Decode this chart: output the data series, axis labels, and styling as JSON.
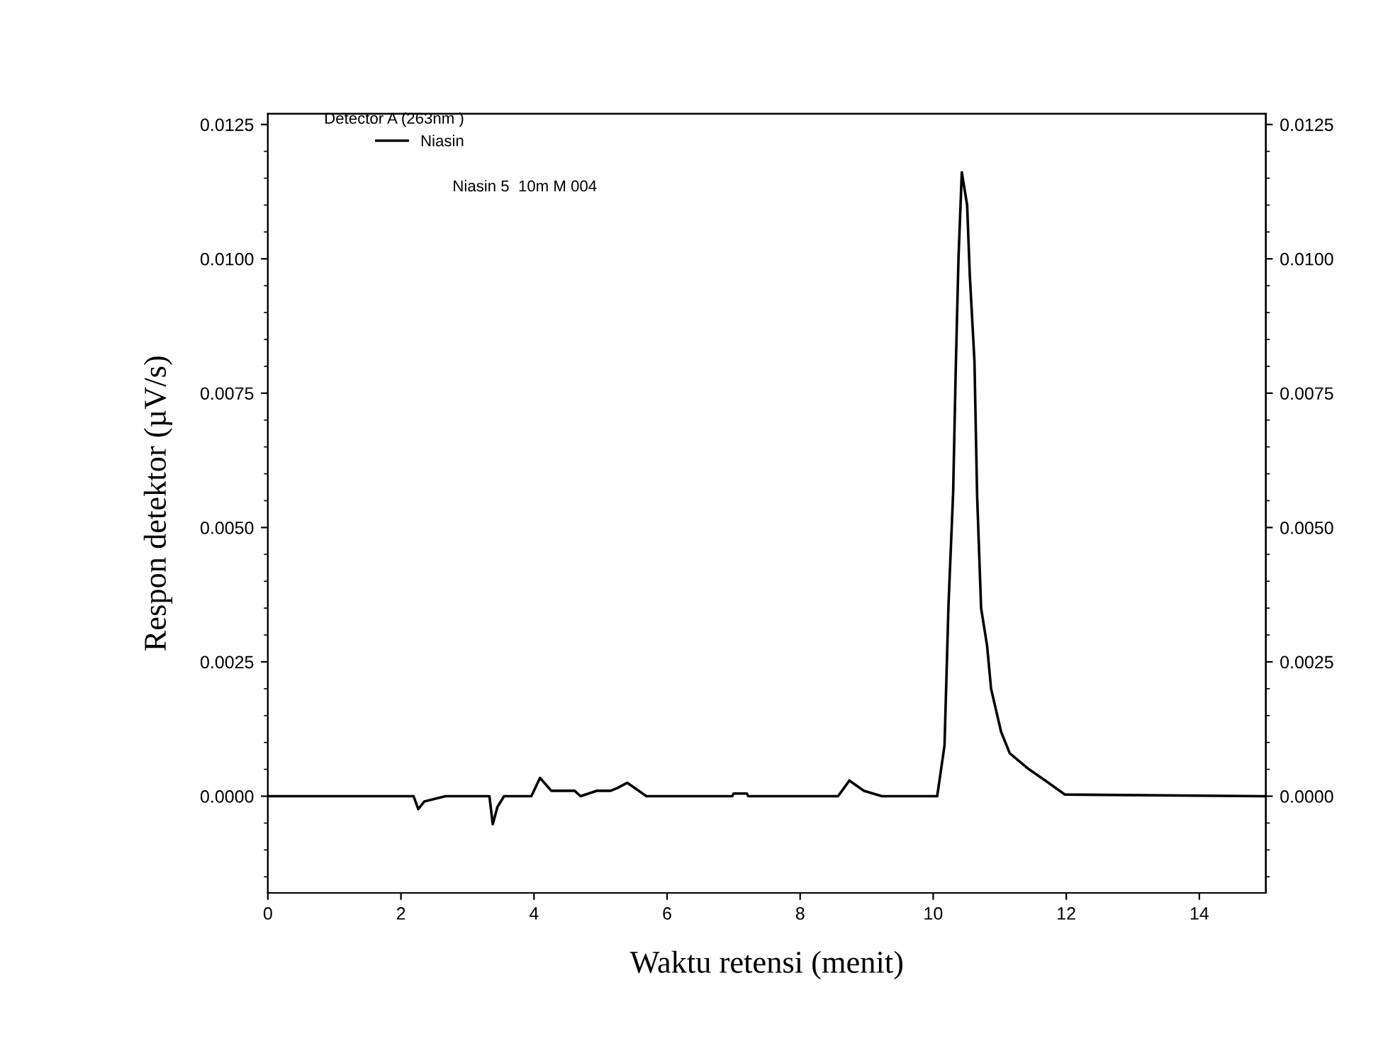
{
  "chart_data": {
    "type": "line",
    "xlabel": "Waktu retensi (menit)",
    "ylabel": "Respon detektor (µV/s)",
    "legend_title": "Detector A (263nm )",
    "legend": "top left",
    "grid": false,
    "annotations": [
      "Niasin 5  10m M 004"
    ],
    "xlim": [
      0,
      15
    ],
    "xticks": [
      0,
      2,
      4,
      6,
      8,
      10,
      12,
      14
    ],
    "ylim": [
      -0.0018,
      0.0127
    ],
    "yticks": [
      {
        "value": 0,
        "label": "0.0000"
      },
      {
        "value": 0.0025,
        "label": "0.0025"
      },
      {
        "value": 0.005,
        "label": "0.0050"
      },
      {
        "value": 0.0075,
        "label": "0.0075"
      },
      {
        "value": 0.01,
        "label": "0.0100"
      },
      {
        "value": 0.0125,
        "label": "0.0125"
      }
    ],
    "y2lim": [
      -0.0018,
      0.0127
    ],
    "y2ticks": [
      {
        "value": 0,
        "label": "0.0000"
      },
      {
        "value": 0.0025,
        "label": "0.0025"
      },
      {
        "value": 0.005,
        "label": "0.0050"
      },
      {
        "value": 0.0075,
        "label": "0.0075"
      },
      {
        "value": 0.01,
        "label": "0.0100"
      },
      {
        "value": 0.0125,
        "label": "0.0125"
      }
    ],
    "series": [
      {
        "name": "Niasin",
        "color": "#000000",
        "x": [
          0,
          2.19,
          2.26,
          2.35,
          2.67,
          3.33,
          3.38,
          3.45,
          3.55,
          3.96,
          4.09,
          4.26,
          4.61,
          4.7,
          4.94,
          5.15,
          5.25,
          5.4,
          5.69,
          6.98,
          7.0,
          7.2,
          7.22,
          8.57,
          8.74,
          8.96,
          9.23,
          10.06,
          10.17,
          10.23,
          10.3,
          10.34,
          10.38,
          10.43,
          10.51,
          10.55,
          10.62,
          10.66,
          10.72,
          10.81,
          10.87,
          11.02,
          11.15,
          11.44,
          11.72,
          11.98,
          15
        ],
        "values": [
          0,
          0,
          -0.00024,
          -0.0001,
          0,
          0,
          -0.00052,
          -0.0002,
          0,
          0,
          0.00034,
          0.0001,
          0.0001,
          0,
          0.0001,
          0.0001,
          0.00015,
          0.00025,
          0,
          0,
          5e-05,
          5e-05,
          0,
          0,
          0.00029,
          0.0001,
          0,
          0,
          0.00094,
          0.00356,
          0.00566,
          0.008,
          0.01,
          0.01161,
          0.011,
          0.0097,
          0.0081,
          0.0056,
          0.0035,
          0.0028,
          0.002,
          0.0012,
          0.0008,
          0.0005,
          0.00026,
          3e-05,
          0
        ]
      }
    ]
  }
}
